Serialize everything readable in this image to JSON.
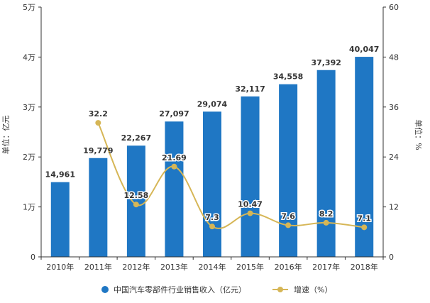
{
  "chart_data": {
    "type": "bar",
    "categories": [
      "2010年",
      "2011年",
      "2012年",
      "2013年",
      "2014年",
      "2015年",
      "2016年",
      "2017年",
      "2018年"
    ],
    "series": [
      {
        "name": "中国汽车零部件行业销售收入（亿元）",
        "type": "bar",
        "axis": "left",
        "color": "#1f77c4",
        "values": [
          14961,
          19779,
          22267,
          27097,
          29074,
          32117,
          34558,
          37392,
          40047
        ],
        "labels": [
          "14,961",
          "19,779",
          "22,267",
          "27,097",
          "29,074",
          "32,117",
          "34,558",
          "37,392",
          "40,047"
        ]
      },
      {
        "name": "增速（%）",
        "type": "line",
        "axis": "right",
        "color": "#d6b656",
        "values": [
          null,
          32.2,
          12.58,
          21.69,
          7.3,
          10.47,
          7.6,
          8.2,
          7.1
        ],
        "labels": [
          null,
          "32.2",
          "12.58",
          "21.69",
          "7.3",
          "10.47",
          "7.6",
          "8.2",
          "7.1"
        ]
      }
    ],
    "y_left": {
      "label": "单位：亿元",
      "range": [
        0,
        50000
      ],
      "ticks": [
        0,
        10000,
        20000,
        30000,
        40000,
        50000
      ],
      "tick_labels": [
        "0",
        "1万",
        "2万",
        "3万",
        "4万",
        "5万"
      ]
    },
    "y_right": {
      "label": "单位：%",
      "range": [
        0,
        60
      ],
      "ticks": [
        0,
        12,
        24,
        36,
        48,
        60
      ],
      "tick_labels": [
        "0",
        "12",
        "24",
        "36",
        "48",
        "60"
      ]
    },
    "grid": false,
    "legend_position": "bottom"
  }
}
